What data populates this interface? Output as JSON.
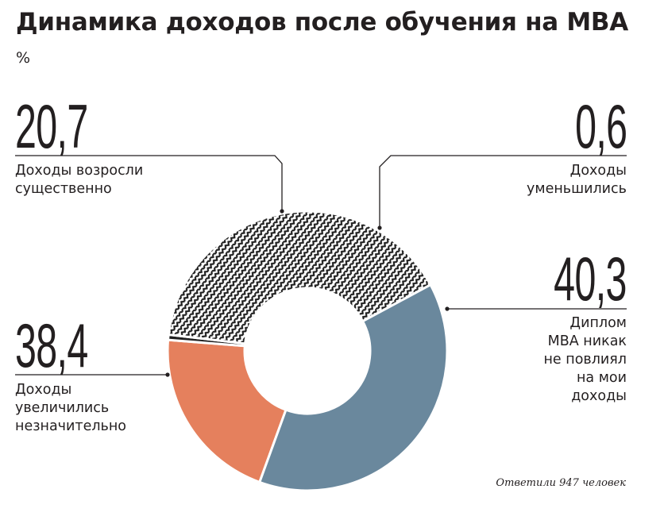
{
  "title": "Динамика доходов после обучения на MBA",
  "unit": "%",
  "note": "Ответили 947 человек",
  "chart_data": {
    "type": "pie",
    "variant": "donut",
    "title": "Динамика доходов после обучения на MBA",
    "unit": "%",
    "slices": [
      {
        "label": "Доходы возросли существенно",
        "value": 20.7,
        "value_text": "20,7",
        "color": "#e5805d",
        "fill": "solid"
      },
      {
        "label": "Доходы уменьшились",
        "value": 0.6,
        "value_text": "0,6",
        "color": "#1f1f1f",
        "fill": "solid"
      },
      {
        "label": "Диплом MBA никак не повлиял на мои доходы",
        "value": 40.3,
        "value_text": "40,3",
        "color": "#1f1f1f",
        "fill": "zigzag-pattern"
      },
      {
        "label": "Доходы увеличились незначительно",
        "value": 38.4,
        "value_text": "38,4",
        "color": "#6a889d",
        "fill": "solid"
      }
    ],
    "respondents_note": "Ответили 947 человек"
  },
  "labels": {
    "up_big": "20,7",
    "up_text": "Доходы возросли\nсущественно",
    "down_big": "0,6",
    "down_text": "Доходы\nуменьшились",
    "none_big": "40,3",
    "none_text": "Диплом\nMBA никак\nне повлиял\nна мои\nдоходы",
    "slight_big": "38,4",
    "slight_text": "Доходы\nувеличились\nнезначительно"
  }
}
